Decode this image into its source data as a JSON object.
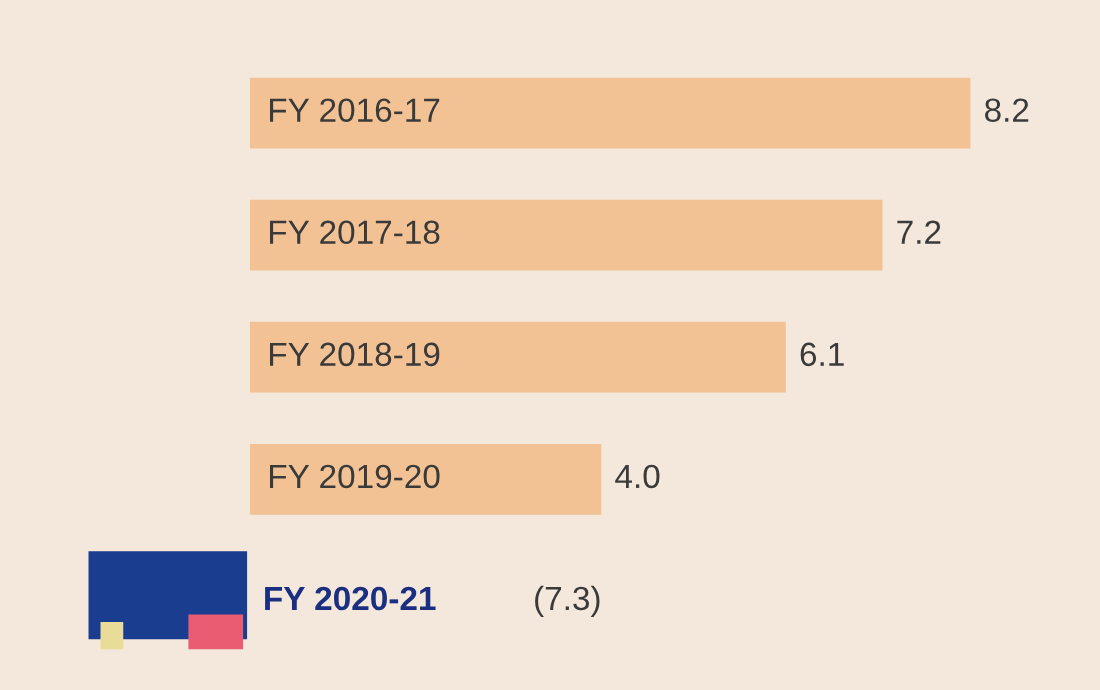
{
  "chart_data": {
    "type": "bar",
    "orientation": "horizontal",
    "categories": [
      "FY 2016-17",
      "FY 2017-18",
      "FY 2018-19",
      "FY 2019-20",
      "FY 2020-21"
    ],
    "values": [
      8.2,
      7.2,
      6.1,
      4.0,
      null
    ],
    "value_labels": [
      "8.2",
      "7.2",
      "6.1",
      "4.0",
      "(7.3)"
    ],
    "color": "#f2c294"
  }
}
